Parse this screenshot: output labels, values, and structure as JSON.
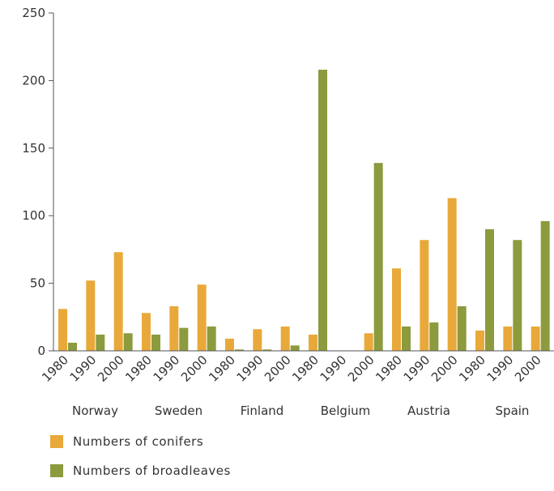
{
  "chart_data": {
    "type": "bar",
    "title": "",
    "xlabel": "",
    "ylabel": "",
    "ylim": [
      0,
      250
    ],
    "yticks": [
      0,
      50,
      100,
      150,
      200,
      250
    ],
    "grid": false,
    "legend_position": "bottom-left",
    "groups": [
      "Norway",
      "Sweden",
      "Finland",
      "Belgium",
      "Austria",
      "Spain"
    ],
    "years": [
      "1980",
      "1990",
      "2000"
    ],
    "categories": [
      "Norway 1980",
      "Norway 1990",
      "Norway 2000",
      "Sweden 1980",
      "Sweden 1990",
      "Sweden 2000",
      "Finland 1980",
      "Finland 1990",
      "Finland 2000",
      "Belgium 1980",
      "Belgium 1990",
      "Belgium 2000",
      "Austria 1980",
      "Austria 1990",
      "Austria 2000",
      "Spain 1980",
      "Spain 1990",
      "Spain 2000"
    ],
    "series": [
      {
        "name": "Numbers of conifers",
        "color": "#e8a93a",
        "values": [
          31,
          52,
          73,
          28,
          33,
          49,
          9,
          16,
          18,
          12,
          0,
          13,
          61,
          82,
          113,
          15,
          18,
          18
        ]
      },
      {
        "name": "Numbers of broadleaves",
        "color": "#8b9b3e",
        "values": [
          6,
          12,
          13,
          12,
          17,
          18,
          1,
          1,
          4,
          208,
          0,
          139,
          18,
          21,
          33,
          90,
          82,
          96
        ]
      }
    ]
  }
}
